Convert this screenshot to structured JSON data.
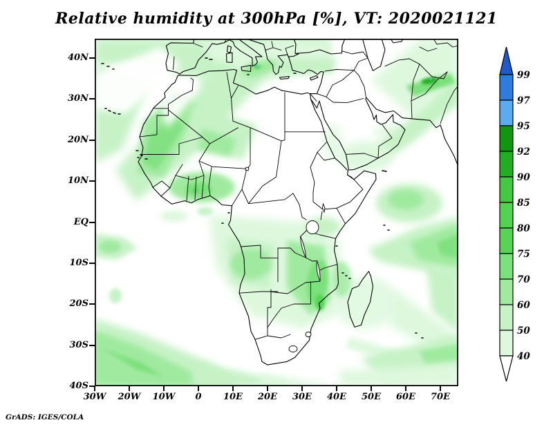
{
  "title": "Relative humidity at 300hPa [%], VT: 2020021121",
  "credit": "GrADS: IGES/COLA",
  "axes": {
    "lat_labels": [
      "40N",
      "30N",
      "20N",
      "10N",
      "EQ",
      "10S",
      "20S",
      "30S",
      "40S"
    ],
    "lon_labels": [
      "30W",
      "20W",
      "10W",
      "0",
      "10E",
      "20E",
      "30E",
      "40E",
      "50E",
      "60E",
      "70E"
    ]
  },
  "colorbar": {
    "levels": [
      "99",
      "97",
      "95",
      "92",
      "90",
      "85",
      "80",
      "75",
      "70",
      "60",
      "50",
      "40"
    ],
    "colors": [
      "#1f5ac8",
      "#2e7ce0",
      "#5caaf0",
      "#119611",
      "#22ae22",
      "#44c844",
      "#52d252",
      "#55d455",
      "#7ce07c",
      "#a0eaa0",
      "#c6f2c6",
      "#def8de",
      "#ffffff"
    ]
  }
}
